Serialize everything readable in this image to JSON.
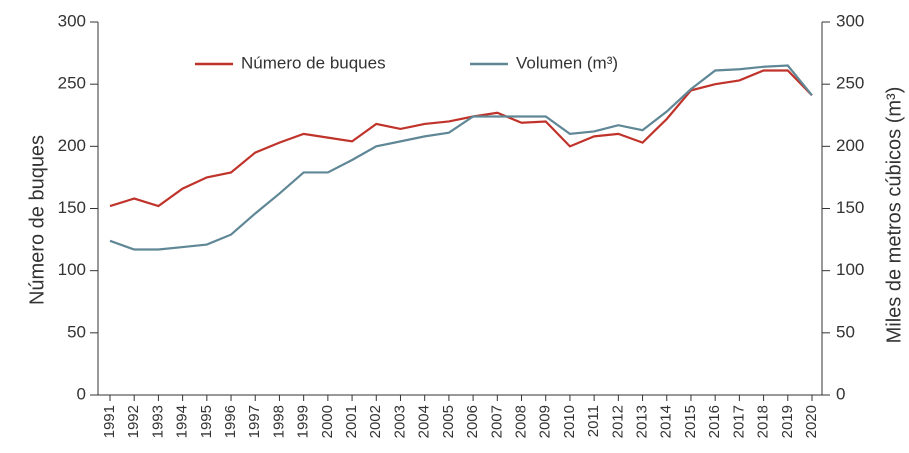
{
  "chart_data": {
    "type": "line",
    "categories": [
      "1991",
      "1992",
      "1993",
      "1994",
      "1995",
      "1996",
      "1997",
      "1998",
      "1999",
      "2000",
      "2001",
      "2002",
      "2003",
      "2004",
      "2005",
      "2006",
      "2007",
      "2008",
      "2009",
      "2010",
      "2011",
      "2012",
      "2013",
      "2014",
      "2015",
      "2016",
      "2017",
      "2018",
      "2019",
      "2020"
    ],
    "series": [
      {
        "name": "Número de buques",
        "color": "#c0332b",
        "axis": "y",
        "values": [
          152,
          158,
          152,
          166,
          175,
          179,
          195,
          203,
          210,
          207,
          204,
          218,
          214,
          218,
          220,
          224,
          227,
          219,
          220,
          200,
          208,
          210,
          203,
          222,
          245,
          250,
          253,
          261,
          261,
          241
        ]
      },
      {
        "name": "Volumen (m³)",
        "color": "#5f8796",
        "axis": "y2",
        "values": [
          124,
          117,
          117,
          119,
          121,
          129,
          146,
          162,
          179,
          179,
          189,
          200,
          204,
          208,
          211,
          224,
          224,
          224,
          224,
          210,
          212,
          217,
          213,
          228,
          246,
          261,
          262,
          264,
          265,
          241
        ]
      }
    ],
    "ylabel": "Número de buques",
    "y2label": "Miles de metros cúbicos (m³)",
    "ylim": [
      0,
      300
    ],
    "yticks": [
      0,
      50,
      100,
      150,
      200,
      250,
      300
    ],
    "y2lim": [
      0,
      300
    ],
    "y2ticks": [
      0,
      50,
      100,
      150,
      200,
      250,
      300
    ],
    "legend": "top"
  }
}
